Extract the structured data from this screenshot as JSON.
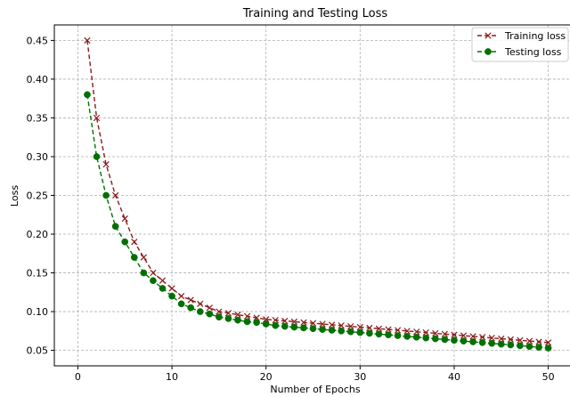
{
  "chart_data": {
    "type": "line",
    "title": "Training and Testing Loss",
    "xlabel": "Number of Epochs",
    "ylabel": "Loss",
    "xlim": [
      -2.5,
      52.5
    ],
    "ylim": [
      0.03,
      0.47
    ],
    "xticks": [
      "0",
      "10",
      "20",
      "30",
      "40",
      "50"
    ],
    "xtick_values": [
      0,
      10,
      20,
      30,
      40,
      50
    ],
    "yticks": [
      "0.05",
      "0.10",
      "0.15",
      "0.20",
      "0.25",
      "0.30",
      "0.35",
      "0.40",
      "0.45"
    ],
    "ytick_values": [
      0.05,
      0.1,
      0.15,
      0.2,
      0.25,
      0.3,
      0.35,
      0.4,
      0.45
    ],
    "grid": true,
    "legend_position": "top-right",
    "x": [
      1,
      2,
      3,
      4,
      5,
      6,
      7,
      8,
      9,
      10,
      11,
      12,
      13,
      14,
      15,
      16,
      17,
      18,
      19,
      20,
      21,
      22,
      23,
      24,
      25,
      26,
      27,
      28,
      29,
      30,
      31,
      32,
      33,
      34,
      35,
      36,
      37,
      38,
      39,
      40,
      41,
      42,
      43,
      44,
      45,
      46,
      47,
      48,
      49,
      50
    ],
    "series": [
      {
        "name": "Training loss",
        "color": "#8b1a1a",
        "marker": "x",
        "linestyle": "dashed",
        "values": [
          0.45,
          0.35,
          0.29,
          0.25,
          0.22,
          0.19,
          0.17,
          0.15,
          0.14,
          0.13,
          0.12,
          0.115,
          0.11,
          0.105,
          0.1,
          0.098,
          0.096,
          0.094,
          0.092,
          0.09,
          0.089,
          0.088,
          0.087,
          0.086,
          0.085,
          0.084,
          0.083,
          0.082,
          0.081,
          0.08,
          0.079,
          0.078,
          0.077,
          0.076,
          0.075,
          0.074,
          0.073,
          0.072,
          0.071,
          0.07,
          0.069,
          0.068,
          0.067,
          0.066,
          0.065,
          0.064,
          0.063,
          0.062,
          0.061,
          0.06
        ]
      },
      {
        "name": "Testing loss",
        "color": "#007000",
        "marker": "o",
        "linestyle": "dashed",
        "values": [
          0.38,
          0.3,
          0.25,
          0.21,
          0.19,
          0.17,
          0.15,
          0.14,
          0.13,
          0.12,
          0.11,
          0.105,
          0.1,
          0.097,
          0.093,
          0.091,
          0.089,
          0.087,
          0.086,
          0.084,
          0.082,
          0.081,
          0.08,
          0.079,
          0.078,
          0.077,
          0.076,
          0.075,
          0.074,
          0.073,
          0.072,
          0.071,
          0.07,
          0.069,
          0.068,
          0.067,
          0.066,
          0.065,
          0.064,
          0.063,
          0.062,
          0.061,
          0.06,
          0.059,
          0.058,
          0.057,
          0.056,
          0.055,
          0.054,
          0.053
        ]
      }
    ]
  }
}
